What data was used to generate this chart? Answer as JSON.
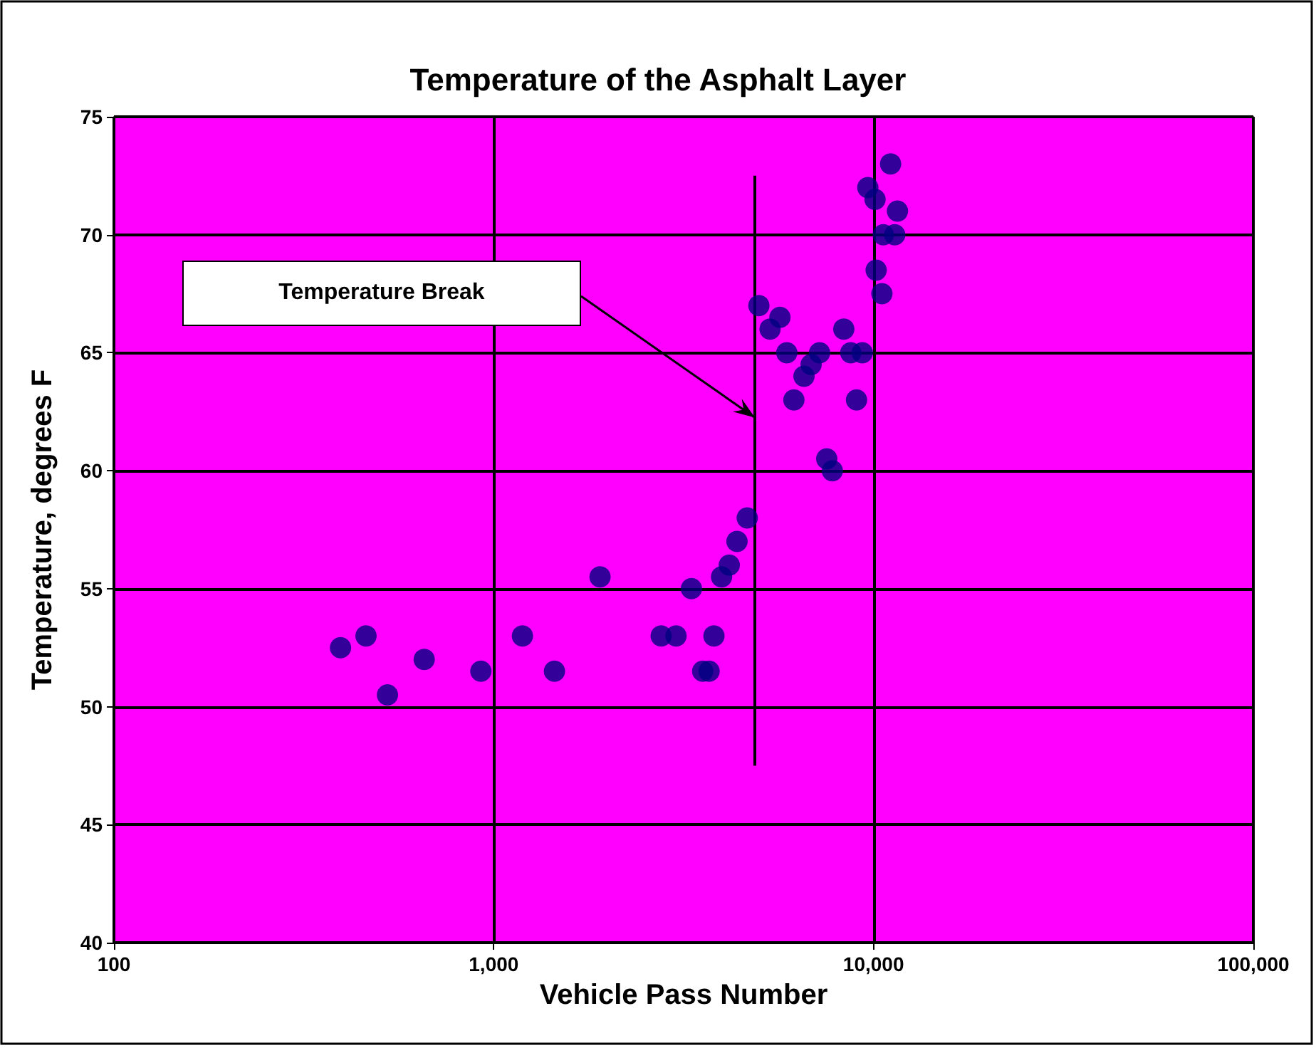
{
  "chart_data": {
    "type": "scatter",
    "title": "Temperature of the Asphalt Layer",
    "xlabel": "Vehicle Pass Number",
    "ylabel": "Temperature, degrees F",
    "log": "x",
    "grid": true,
    "marker": "circle",
    "xlim": [
      100,
      100000
    ],
    "xticks": [
      100,
      {
        "value": 1000,
        "label": "1,000"
      },
      {
        "value": 10000,
        "label": "10,000"
      },
      {
        "value": 100000,
        "label": "100,000"
      }
    ],
    "ylim": [
      40,
      75
    ],
    "yticks": [
      40,
      45,
      50,
      55,
      60,
      65,
      70,
      75
    ],
    "series": [
      {
        "color": "#000080",
        "x": [
          395,
          461,
          525,
          656,
          925,
          1190,
          1445,
          1905,
          2760,
          3020,
          3315,
          3550,
          3690,
          3800,
          3980,
          4170,
          4370,
          4650,
          4990,
          5340,
          5670,
          5910,
          6170,
          6560,
          6850,
          7210,
          7530,
          7790,
          8350,
          8710,
          9020,
          9340,
          9660,
          10090,
          10160,
          10520,
          10610,
          11090,
          11370,
          11560
        ],
        "values": [
          52.5,
          53,
          50.5,
          52,
          51.5,
          53,
          51.5,
          55.5,
          53,
          53,
          55,
          51.5,
          51.5,
          53,
          55.5,
          56,
          57,
          58,
          67,
          66,
          66.5,
          65,
          63,
          64,
          64.5,
          65,
          60.5,
          60,
          66,
          65,
          63,
          65,
          72,
          71.5,
          68.5,
          67.5,
          70,
          73,
          70,
          71
        ]
      },
      {
        "type": "line",
        "color": "#000000",
        "marker": "none",
        "x": [
          4870,
          4870
        ],
        "values": [
          47.5,
          72.5
        ]
      }
    ],
    "annotations": [
      "Temperature Break"
    ]
  }
}
